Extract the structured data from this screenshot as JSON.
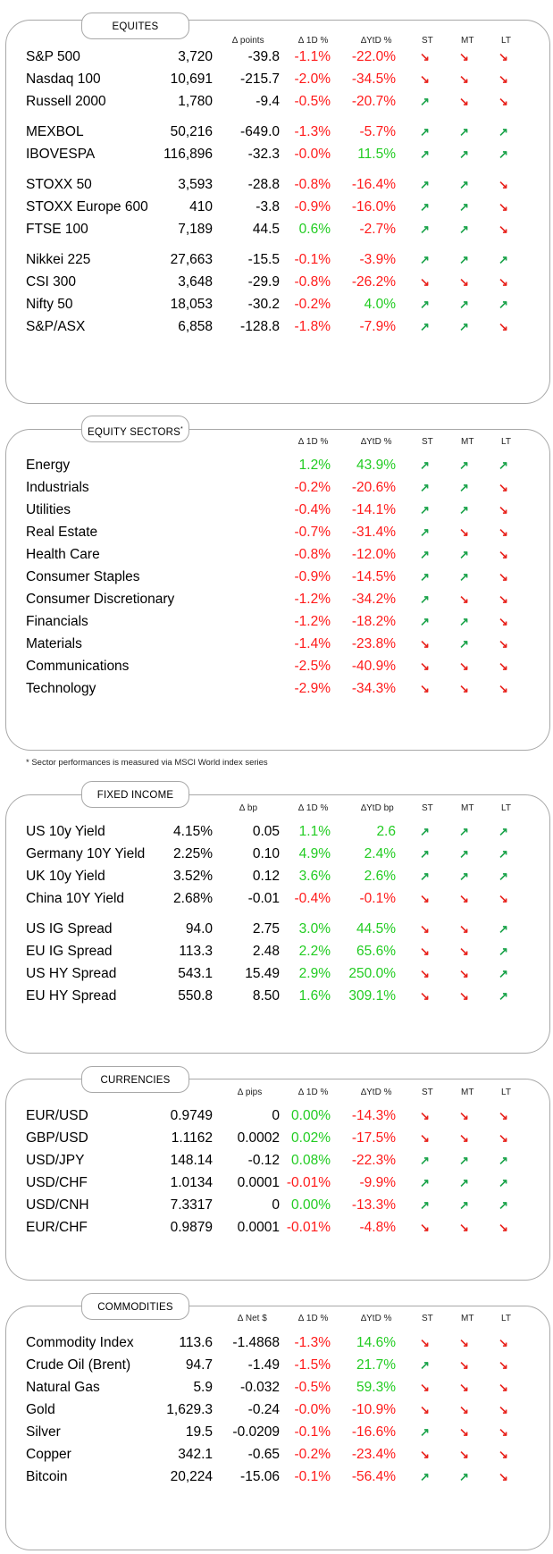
{
  "headers": {
    "d1": "∆ 1D %",
    "ytd": "∆YtD %",
    "ytd_bp": "∆YtD bp",
    "st": "ST",
    "mt": "MT",
    "lt": "LT"
  },
  "colors": {
    "negative": "#ff1a1a",
    "positive": "#22cc22",
    "arrow_up": "#1aa34a",
    "arrow_down": "#e8211b",
    "border": "#a8a8a8"
  },
  "equities": {
    "title": "EQUITES",
    "change_header": "∆ points",
    "rows": [
      {
        "name": "S&P 500",
        "value": "3,720",
        "change": "-39.8",
        "d1": "-1.1%",
        "ytd": "-22.0%",
        "st": "down",
        "mt": "down",
        "lt": "down"
      },
      {
        "name": "Nasdaq 100",
        "value": "10,691",
        "change": "-215.7",
        "d1": "-2.0%",
        "ytd": "-34.5%",
        "st": "down",
        "mt": "down",
        "lt": "down"
      },
      {
        "name": "Russell 2000",
        "value": "1,780",
        "change": "-9.4",
        "d1": "-0.5%",
        "ytd": "-20.7%",
        "st": "up",
        "mt": "down",
        "lt": "down"
      },
      {
        "name": "MEXBOL",
        "value": "50,216",
        "change": "-649.0",
        "d1": "-1.3%",
        "ytd": "-5.7%",
        "st": "up",
        "mt": "up",
        "lt": "up"
      },
      {
        "name": "IBOVESPA",
        "value": "116,896",
        "change": "-32.3",
        "d1": "-0.0%",
        "ytd": "11.5%",
        "st": "up",
        "mt": "up",
        "lt": "up"
      },
      {
        "name": "STOXX 50",
        "value": "3,593",
        "change": "-28.8",
        "d1": "-0.8%",
        "ytd": "-16.4%",
        "st": "up",
        "mt": "up",
        "lt": "down"
      },
      {
        "name": "STOXX Europe 600",
        "value": "410",
        "change": "-3.8",
        "d1": "-0.9%",
        "ytd": "-16.0%",
        "st": "up",
        "mt": "up",
        "lt": "down"
      },
      {
        "name": "FTSE 100",
        "value": "7,189",
        "change": "44.5",
        "d1": "0.6%",
        "ytd": "-2.7%",
        "st": "up",
        "mt": "up",
        "lt": "down"
      },
      {
        "name": "Nikkei 225",
        "value": "27,663",
        "change": "-15.5",
        "d1": "-0.1%",
        "ytd": "-3.9%",
        "st": "up",
        "mt": "up",
        "lt": "up"
      },
      {
        "name": "CSI 300",
        "value": "3,648",
        "change": "-29.9",
        "d1": "-0.8%",
        "ytd": "-26.2%",
        "st": "down",
        "mt": "down",
        "lt": "down"
      },
      {
        "name": "Nifty  50",
        "value": "18,053",
        "change": "-30.2",
        "d1": "-0.2%",
        "ytd": "4.0%",
        "st": "up",
        "mt": "up",
        "lt": "up"
      },
      {
        "name": "S&P/ASX",
        "value": "6,858",
        "change": "-128.8",
        "d1": "-1.8%",
        "ytd": "-7.9%",
        "st": "up",
        "mt": "up",
        "lt": "down"
      }
    ]
  },
  "sectors": {
    "title": "EQUITY SECTORS",
    "title_mark": "*",
    "footnote": "* Sector performances is measured via MSCI World index series",
    "rows": [
      {
        "name": "Energy",
        "d1": "1.2%",
        "ytd": "43.9%",
        "st": "up",
        "mt": "up",
        "lt": "up"
      },
      {
        "name": "Industrials",
        "d1": "-0.2%",
        "ytd": "-20.6%",
        "st": "up",
        "mt": "up",
        "lt": "down"
      },
      {
        "name": "Utilities",
        "d1": "-0.4%",
        "ytd": "-14.1%",
        "st": "up",
        "mt": "up",
        "lt": "down"
      },
      {
        "name": "Real Estate",
        "d1": "-0.7%",
        "ytd": "-31.4%",
        "st": "up",
        "mt": "down",
        "lt": "down"
      },
      {
        "name": "Health Care",
        "d1": "-0.8%",
        "ytd": "-12.0%",
        "st": "up",
        "mt": "up",
        "lt": "down"
      },
      {
        "name": "Consumer Staples",
        "d1": "-0.9%",
        "ytd": "-14.5%",
        "st": "up",
        "mt": "up",
        "lt": "down"
      },
      {
        "name": "Consumer Discretionary",
        "d1": "-1.2%",
        "ytd": "-34.2%",
        "st": "up",
        "mt": "down",
        "lt": "down"
      },
      {
        "name": "Financials",
        "d1": "-1.2%",
        "ytd": "-18.2%",
        "st": "up",
        "mt": "up",
        "lt": "down"
      },
      {
        "name": "Materials",
        "d1": "-1.4%",
        "ytd": "-23.8%",
        "st": "down",
        "mt": "up",
        "lt": "down"
      },
      {
        "name": "Communications",
        "d1": "-2.5%",
        "ytd": "-40.9%",
        "st": "down",
        "mt": "down",
        "lt": "down"
      },
      {
        "name": "Technology",
        "d1": "-2.9%",
        "ytd": "-34.3%",
        "st": "down",
        "mt": "down",
        "lt": "down"
      }
    ]
  },
  "fixed_income": {
    "title": "FIXED INCOME",
    "change_header": "∆ bp",
    "rows": [
      {
        "name": "US 10y Yield",
        "value": "4.15%",
        "change": "0.05",
        "d1": "1.1%",
        "ytd": "2.6",
        "st": "up",
        "mt": "up",
        "lt": "up"
      },
      {
        "name": "Germany 10Y Yield",
        "value": "2.25%",
        "change": "0.10",
        "d1": "4.9%",
        "ytd": "2.4%",
        "st": "up",
        "mt": "up",
        "lt": "up"
      },
      {
        "name": "UK 10y Yield",
        "value": "3.52%",
        "change": "0.12",
        "d1": "3.6%",
        "ytd": "2.6%",
        "st": "up",
        "mt": "up",
        "lt": "up"
      },
      {
        "name": "China 10Y Yield",
        "value": "2.68%",
        "change": "-0.01",
        "d1": "-0.4%",
        "ytd": "-0.1%",
        "st": "down",
        "mt": "down",
        "lt": "down"
      },
      {
        "name": "US IG Spread",
        "value": "94.0",
        "change": "2.75",
        "d1": "3.0%",
        "ytd": "44.5%",
        "st": "down",
        "mt": "down",
        "lt": "up"
      },
      {
        "name": "EU IG Spread",
        "value": "113.3",
        "change": "2.48",
        "d1": "2.2%",
        "ytd": "65.6%",
        "st": "down",
        "mt": "down",
        "lt": "up"
      },
      {
        "name": "US HY Spread",
        "value": "543.1",
        "change": "15.49",
        "d1": "2.9%",
        "ytd": "250.0%",
        "st": "down",
        "mt": "down",
        "lt": "up"
      },
      {
        "name": "EU HY Spread",
        "value": "550.8",
        "change": "8.50",
        "d1": "1.6%",
        "ytd": "309.1%",
        "st": "down",
        "mt": "down",
        "lt": "up"
      }
    ]
  },
  "currencies": {
    "title": "CURRENCIES",
    "change_header": "∆ pips",
    "rows": [
      {
        "name": "EUR/USD",
        "value": "0.9749",
        "change": "0",
        "d1": "0.00%",
        "ytd": "-14.3%",
        "st": "down",
        "mt": "down",
        "lt": "down"
      },
      {
        "name": "GBP/USD",
        "value": "1.1162",
        "change": "0.0002",
        "d1": "0.02%",
        "ytd": "-17.5%",
        "st": "down",
        "mt": "down",
        "lt": "down"
      },
      {
        "name": "USD/JPY",
        "value": "148.14",
        "change": "-0.12",
        "d1": "0.08%",
        "ytd": "-22.3%",
        "st": "up",
        "mt": "up",
        "lt": "up"
      },
      {
        "name": "USD/CHF",
        "value": "1.0134",
        "change": "0.0001",
        "d1": "-0.01%",
        "ytd": "-9.9%",
        "st": "up",
        "mt": "up",
        "lt": "up"
      },
      {
        "name": "USD/CNH",
        "value": "7.3317",
        "change": "0",
        "d1": "0.00%",
        "ytd": "-13.3%",
        "st": "up",
        "mt": "up",
        "lt": "up"
      },
      {
        "name": "EUR/CHF",
        "value": "0.9879",
        "change": "0.0001",
        "d1": "-0.01%",
        "ytd": "-4.8%",
        "st": "down",
        "mt": "down",
        "lt": "down"
      }
    ]
  },
  "commodities": {
    "title": "COMMODITIES",
    "change_header": "∆ Net $",
    "rows": [
      {
        "name": "Commodity Index",
        "value": "113.6",
        "change": "-1.4868",
        "d1": "-1.3%",
        "ytd": "14.6%",
        "st": "down",
        "mt": "down",
        "lt": "down"
      },
      {
        "name": "Crude Oil (Brent)",
        "value": "94.7",
        "change": "-1.49",
        "d1": "-1.5%",
        "ytd": "21.7%",
        "st": "up",
        "mt": "down",
        "lt": "down"
      },
      {
        "name": "Natural Gas",
        "value": "5.9",
        "change": "-0.032",
        "d1": "-0.5%",
        "ytd": "59.3%",
        "st": "down",
        "mt": "down",
        "lt": "down"
      },
      {
        "name": "Gold",
        "value": "1,629.3",
        "change": "-0.24",
        "d1": "-0.0%",
        "ytd": "-10.9%",
        "st": "down",
        "mt": "down",
        "lt": "down"
      },
      {
        "name": "Silver",
        "value": "19.5",
        "change": "-0.0209",
        "d1": "-0.1%",
        "ytd": "-16.6%",
        "st": "up",
        "mt": "down",
        "lt": "down"
      },
      {
        "name": "Copper",
        "value": "342.1",
        "change": "-0.65",
        "d1": "-0.2%",
        "ytd": "-23.4%",
        "st": "down",
        "mt": "down",
        "lt": "down"
      },
      {
        "name": "Bitcoin",
        "value": "20,224",
        "change": "-15.06",
        "d1": "-0.1%",
        "ytd": "-56.4%",
        "st": "up",
        "mt": "up",
        "lt": "down"
      }
    ]
  }
}
